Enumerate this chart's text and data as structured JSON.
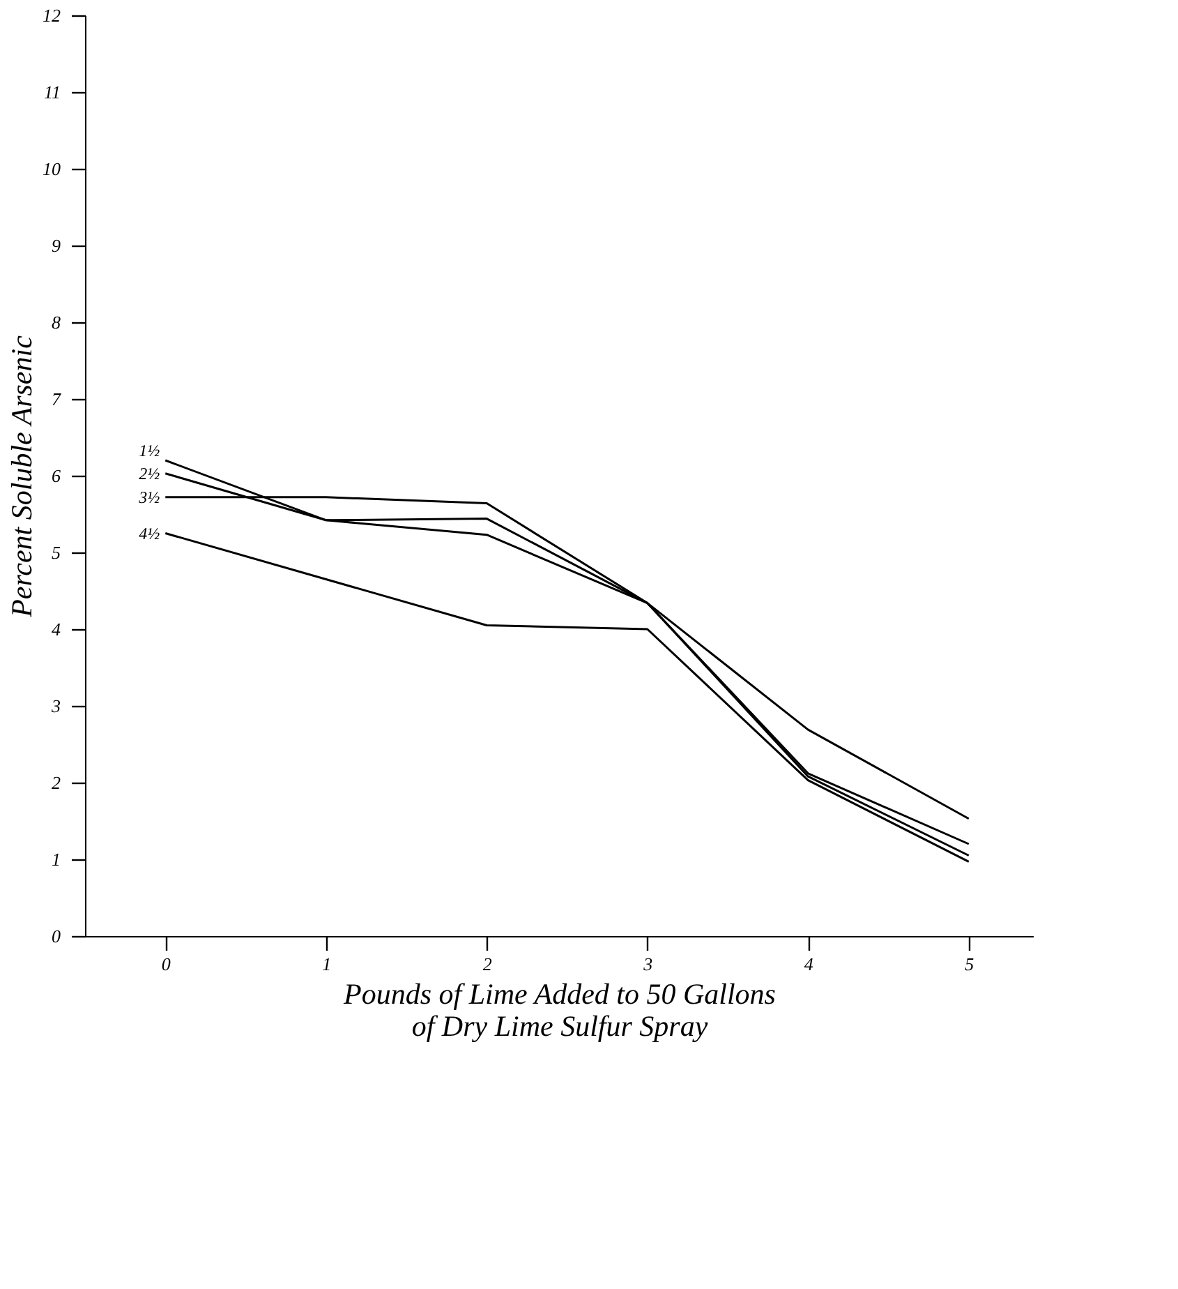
{
  "chart_data": {
    "type": "line",
    "xlabel": "Pounds of Lime Added to 50 Gallons\nof Dry Lime Sulfur Spray",
    "ylabel": "Percent Soluble Arsenic",
    "x": [
      0,
      1,
      2,
      3,
      4,
      5
    ],
    "series": [
      {
        "name": "1½",
        "color": "#000000",
        "values": [
          6.2,
          5.42,
          5.44,
          4.34,
          2.08,
          1.05
        ]
      },
      {
        "name": "2½",
        "color": "#000000",
        "values": [
          6.03,
          5.42,
          5.23,
          4.34,
          2.12,
          1.2
        ]
      },
      {
        "name": "3½",
        "color": "#000000",
        "values": [
          5.72,
          5.72,
          5.64,
          4.34,
          2.69,
          1.53
        ]
      },
      {
        "name": "4½",
        "color": "#000000",
        "values": [
          5.25,
          4.65,
          4.05,
          4.0,
          2.03,
          0.97
        ]
      }
    ],
    "xlim": [
      -0.5,
      5.4
    ],
    "xticks": [
      0,
      1,
      2,
      3,
      4,
      5
    ],
    "ylim": [
      0,
      12
    ],
    "yticks": [
      0,
      1,
      2,
      3,
      4,
      5,
      6,
      7,
      8,
      9,
      10,
      11,
      12
    ],
    "grid": false,
    "legend": false,
    "marker": "none",
    "line_style": "solid"
  }
}
